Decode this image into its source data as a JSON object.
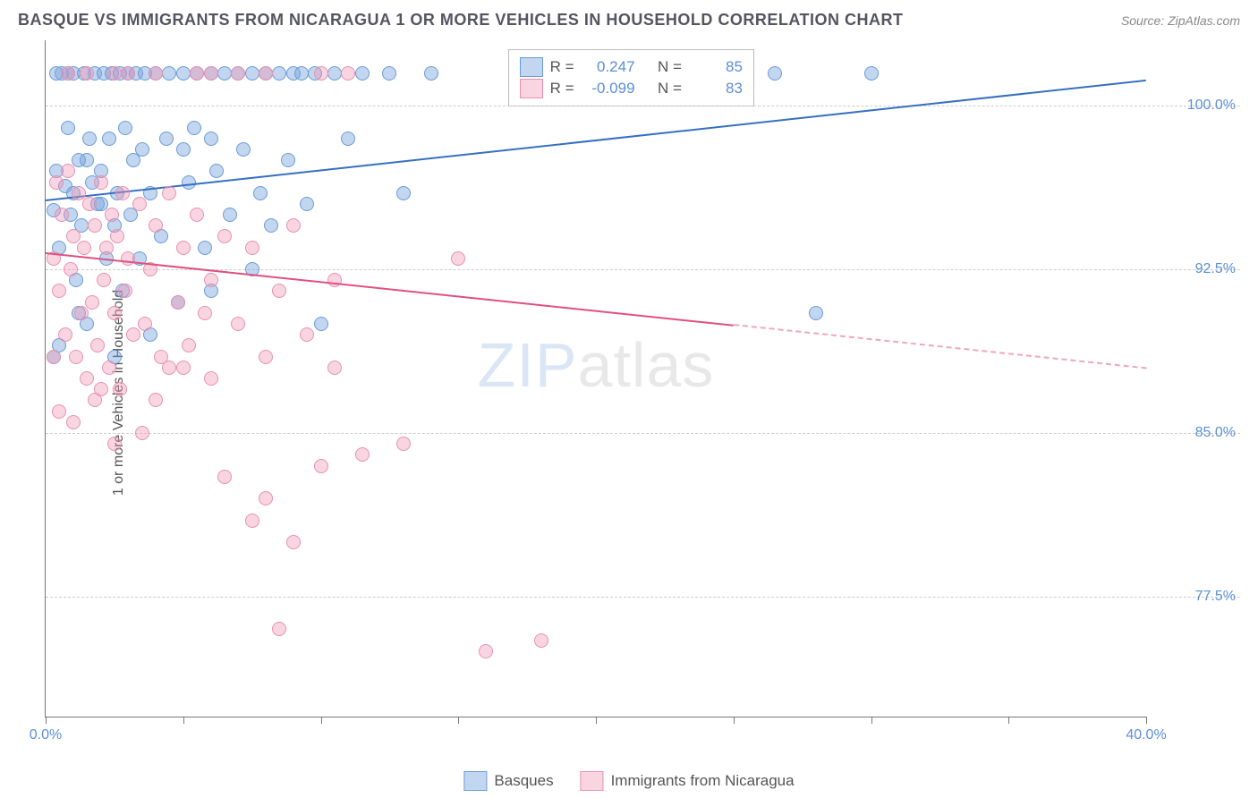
{
  "title": "BASQUE VS IMMIGRANTS FROM NICARAGUA 1 OR MORE VEHICLES IN HOUSEHOLD CORRELATION CHART",
  "source": "Source: ZipAtlas.com",
  "watermark_a": "ZIP",
  "watermark_b": "atlas",
  "chart": {
    "type": "scatter",
    "xlim": [
      0,
      40
    ],
    "ylim": [
      72,
      103
    ],
    "x_ticks": [
      0,
      5,
      10,
      15,
      20,
      25,
      30,
      35,
      40
    ],
    "x_tick_labels": {
      "0": "0.0%",
      "40": "40.0%"
    },
    "y_ticks": [
      77.5,
      85.0,
      92.5,
      100.0
    ],
    "y_tick_labels": [
      "77.5%",
      "85.0%",
      "92.5%",
      "100.0%"
    ],
    "y_axis_title": "1 or more Vehicles in Household",
    "grid_color": "#cccccc",
    "background_color": "#ffffff",
    "marker_radius": 8,
    "series": [
      {
        "id": "basques",
        "label": "Basques",
        "R": "0.247",
        "N": "85",
        "color_fill": "rgba(120,165,220,0.45)",
        "color_stroke": "#6a9bd8",
        "reg_color": "#3570c0",
        "reg_width": 2.4,
        "reg_y_at_x0": 95.7,
        "reg_y_at_xmax": 101.2,
        "reg_solid_xmax": 40,
        "points": [
          [
            0.3,
            95.2
          ],
          [
            0.4,
            97.0
          ],
          [
            0.5,
            93.5
          ],
          [
            0.6,
            101.5
          ],
          [
            0.7,
            96.3
          ],
          [
            0.8,
            99.0
          ],
          [
            0.9,
            95.0
          ],
          [
            1.0,
            101.5
          ],
          [
            1.1,
            92.0
          ],
          [
            1.2,
            97.5
          ],
          [
            1.3,
            94.5
          ],
          [
            1.4,
            101.5
          ],
          [
            1.5,
            90.0
          ],
          [
            1.6,
            98.5
          ],
          [
            1.7,
            96.5
          ],
          [
            1.8,
            101.5
          ],
          [
            1.9,
            95.5
          ],
          [
            2.0,
            97.0
          ],
          [
            2.1,
            101.5
          ],
          [
            2.2,
            93.0
          ],
          [
            2.3,
            98.5
          ],
          [
            2.4,
            101.5
          ],
          [
            2.5,
            94.5
          ],
          [
            2.6,
            96.0
          ],
          [
            2.7,
            101.5
          ],
          [
            2.8,
            91.5
          ],
          [
            2.9,
            99.0
          ],
          [
            3.0,
            101.5
          ],
          [
            3.1,
            95.0
          ],
          [
            3.2,
            97.5
          ],
          [
            3.3,
            101.5
          ],
          [
            3.4,
            93.0
          ],
          [
            3.5,
            98.0
          ],
          [
            3.6,
            101.5
          ],
          [
            3.8,
            96.0
          ],
          [
            4.0,
            101.5
          ],
          [
            4.2,
            94.0
          ],
          [
            4.4,
            98.5
          ],
          [
            4.5,
            101.5
          ],
          [
            4.8,
            91.0
          ],
          [
            5.0,
            101.5
          ],
          [
            5.2,
            96.5
          ],
          [
            5.4,
            99.0
          ],
          [
            5.5,
            101.5
          ],
          [
            5.8,
            93.5
          ],
          [
            6.0,
            101.5
          ],
          [
            6.2,
            97.0
          ],
          [
            6.5,
            101.5
          ],
          [
            6.7,
            95.0
          ],
          [
            7.0,
            101.5
          ],
          [
            7.2,
            98.0
          ],
          [
            7.5,
            101.5
          ],
          [
            7.8,
            96.0
          ],
          [
            8.0,
            101.5
          ],
          [
            8.2,
            94.5
          ],
          [
            8.5,
            101.5
          ],
          [
            8.8,
            97.5
          ],
          [
            9.0,
            101.5
          ],
          [
            9.3,
            101.5
          ],
          [
            9.5,
            95.5
          ],
          [
            9.8,
            101.5
          ],
          [
            10.0,
            90.0
          ],
          [
            10.5,
            101.5
          ],
          [
            11.0,
            98.5
          ],
          [
            11.5,
            101.5
          ],
          [
            12.5,
            101.5
          ],
          [
            13.0,
            96.0
          ],
          [
            14.0,
            101.5
          ],
          [
            26.5,
            101.5
          ],
          [
            30.0,
            101.5
          ],
          [
            0.5,
            89.0
          ],
          [
            1.2,
            90.5
          ],
          [
            2.5,
            88.5
          ],
          [
            3.8,
            89.5
          ],
          [
            6.0,
            91.5
          ],
          [
            7.5,
            92.5
          ],
          [
            0.3,
            88.5
          ],
          [
            0.4,
            101.5
          ],
          [
            0.8,
            101.5
          ],
          [
            28.0,
            90.5
          ],
          [
            5.0,
            98.0
          ],
          [
            6.0,
            98.5
          ],
          [
            1.0,
            96.0
          ],
          [
            1.5,
            97.5
          ],
          [
            2.0,
            95.5
          ]
        ]
      },
      {
        "id": "nicaragua",
        "label": "Immigrants from Nicaragua",
        "R": "-0.099",
        "N": "83",
        "color_fill": "rgba(240,150,180,0.40)",
        "color_stroke": "#e890b0",
        "reg_color": "#e05080",
        "reg_width": 2.2,
        "reg_y_at_x0": 93.3,
        "reg_y_at_xmax": 88.0,
        "reg_solid_xmax": 25,
        "points": [
          [
            0.3,
            93.0
          ],
          [
            0.4,
            96.5
          ],
          [
            0.5,
            91.5
          ],
          [
            0.6,
            95.0
          ],
          [
            0.7,
            89.5
          ],
          [
            0.8,
            97.0
          ],
          [
            0.9,
            92.5
          ],
          [
            1.0,
            94.0
          ],
          [
            1.1,
            88.5
          ],
          [
            1.2,
            96.0
          ],
          [
            1.3,
            90.5
          ],
          [
            1.4,
            93.5
          ],
          [
            1.5,
            87.5
          ],
          [
            1.6,
            95.5
          ],
          [
            1.7,
            91.0
          ],
          [
            1.8,
            94.5
          ],
          [
            1.9,
            89.0
          ],
          [
            2.0,
            96.5
          ],
          [
            2.1,
            92.0
          ],
          [
            2.2,
            93.5
          ],
          [
            2.3,
            88.0
          ],
          [
            2.4,
            95.0
          ],
          [
            2.5,
            90.5
          ],
          [
            2.6,
            94.0
          ],
          [
            2.7,
            87.0
          ],
          [
            2.8,
            96.0
          ],
          [
            2.9,
            91.5
          ],
          [
            3.0,
            93.0
          ],
          [
            3.2,
            89.5
          ],
          [
            3.4,
            95.5
          ],
          [
            3.6,
            90.0
          ],
          [
            3.8,
            92.5
          ],
          [
            4.0,
            94.5
          ],
          [
            4.2,
            88.5
          ],
          [
            4.5,
            96.0
          ],
          [
            4.8,
            91.0
          ],
          [
            5.0,
            93.5
          ],
          [
            5.2,
            89.0
          ],
          [
            5.5,
            95.0
          ],
          [
            5.8,
            90.5
          ],
          [
            6.0,
            92.0
          ],
          [
            6.5,
            94.0
          ],
          [
            7.0,
            90.0
          ],
          [
            7.5,
            93.5
          ],
          [
            8.0,
            88.5
          ],
          [
            8.5,
            91.5
          ],
          [
            9.0,
            94.5
          ],
          [
            9.5,
            89.5
          ],
          [
            10.0,
            101.5
          ],
          [
            10.5,
            92.0
          ],
          [
            11.0,
            101.5
          ],
          [
            0.5,
            86.0
          ],
          [
            1.0,
            85.5
          ],
          [
            1.8,
            86.5
          ],
          [
            2.5,
            84.5
          ],
          [
            3.5,
            85.0
          ],
          [
            5.0,
            88.0
          ],
          [
            6.0,
            87.5
          ],
          [
            4.0,
            86.5
          ],
          [
            2.0,
            87.0
          ],
          [
            7.0,
            101.5
          ],
          [
            8.0,
            101.5
          ],
          [
            0.8,
            101.5
          ],
          [
            1.5,
            101.5
          ],
          [
            0.3,
            88.5
          ],
          [
            4.5,
            88.0
          ],
          [
            15.0,
            93.0
          ],
          [
            18.0,
            75.5
          ],
          [
            16.0,
            75.0
          ],
          [
            8.5,
            76.0
          ],
          [
            10.0,
            83.5
          ],
          [
            11.5,
            84.0
          ],
          [
            13.0,
            84.5
          ],
          [
            8.0,
            82.0
          ],
          [
            9.0,
            80.0
          ],
          [
            7.5,
            81.0
          ],
          [
            6.5,
            83.0
          ],
          [
            10.5,
            88.0
          ],
          [
            6.0,
            101.5
          ],
          [
            5.5,
            101.5
          ],
          [
            4.0,
            101.5
          ],
          [
            3.0,
            101.5
          ],
          [
            2.5,
            101.5
          ]
        ]
      }
    ]
  },
  "legend_labels": {
    "R": "R =",
    "N": "N ="
  }
}
